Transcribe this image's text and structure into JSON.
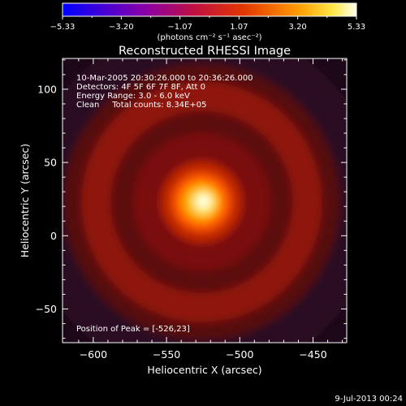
{
  "chart_data": {
    "type": "heatmap",
    "title": "Reconstructed RHESSI Image",
    "xlabel": "Heliocentric X (arcsec)",
    "ylabel": "Heliocentric Y (arcsec)",
    "xlim": [
      -621,
      -427
    ],
    "ylim": [
      -73,
      121
    ],
    "x_ticks": [
      -600,
      -550,
      -500,
      -450
    ],
    "y_ticks": [
      -50,
      0,
      50,
      100
    ],
    "colorbar": {
      "range": [
        -5.33,
        5.33
      ],
      "ticks": [
        "-5.33",
        "-3.20",
        "-1.07",
        "1.07",
        "3.20",
        "5.33"
      ],
      "label": "(photons cm⁻² s⁻¹ asec⁻²)"
    },
    "info_lines": [
      "10-Mar-2005 20:30:26.000 to 20:36:26.000",
      "Detectors: 4F 5F 6F 7F 8F, Att 0",
      "Energy Range: 3.0 - 6.0 keV",
      "Clean     Total counts: 8.34E+05"
    ],
    "peak_label": "Position of Peak = [-526,23]",
    "peak": [
      -526,
      23
    ],
    "timestamp": "9-Jul-2013 00:24"
  }
}
